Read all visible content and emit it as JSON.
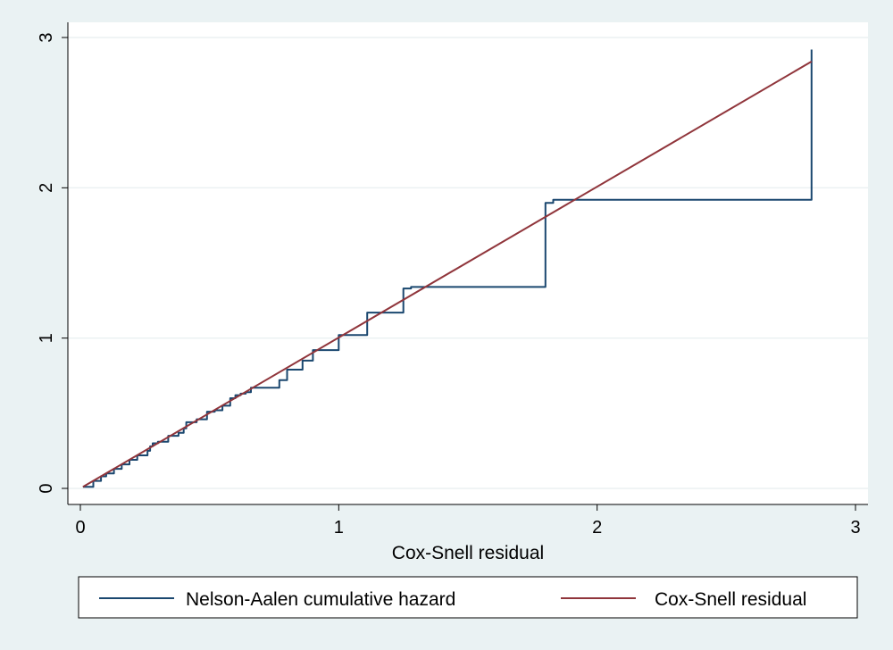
{
  "chart_data": {
    "type": "line",
    "title": "",
    "xlabel": "Cox-Snell residual",
    "ylabel": "",
    "xlim": [
      0,
      3
    ],
    "ylim": [
      0,
      3
    ],
    "x_ticks": [
      0,
      1,
      2,
      3
    ],
    "y_ticks": [
      0,
      1,
      2,
      3
    ],
    "x_tick_labels": [
      "0",
      "1",
      "2",
      "3"
    ],
    "y_tick_labels": [
      "0",
      "1",
      "2",
      "3"
    ],
    "grid": true,
    "legend_position": "bottom",
    "series": [
      {
        "name": "Nelson-Aalen cumulative hazard",
        "color": "#1a476f",
        "step": true,
        "x": [
          0.01,
          0.05,
          0.08,
          0.1,
          0.13,
          0.16,
          0.19,
          0.22,
          0.26,
          0.27,
          0.28,
          0.3,
          0.34,
          0.38,
          0.4,
          0.41,
          0.45,
          0.48,
          0.49,
          0.52,
          0.55,
          0.58,
          0.6,
          0.62,
          0.64,
          0.66,
          0.75,
          0.77,
          0.8,
          0.86,
          0.9,
          1.0,
          1.09,
          1.11,
          1.25,
          1.28,
          1.8,
          1.83,
          2.83
        ],
        "y": [
          0.01,
          0.05,
          0.08,
          0.1,
          0.13,
          0.16,
          0.19,
          0.22,
          0.25,
          0.28,
          0.3,
          0.31,
          0.35,
          0.37,
          0.4,
          0.44,
          0.46,
          0.46,
          0.51,
          0.52,
          0.55,
          0.6,
          0.62,
          0.63,
          0.64,
          0.67,
          0.67,
          0.72,
          0.79,
          0.85,
          0.92,
          1.02,
          1.02,
          1.17,
          1.33,
          1.34,
          1.9,
          1.92,
          2.92
        ]
      },
      {
        "name": "Cox-Snell residual",
        "color": "#90353b",
        "x": [
          0.01,
          2.83
        ],
        "y": [
          0.01,
          2.84
        ]
      }
    ]
  }
}
